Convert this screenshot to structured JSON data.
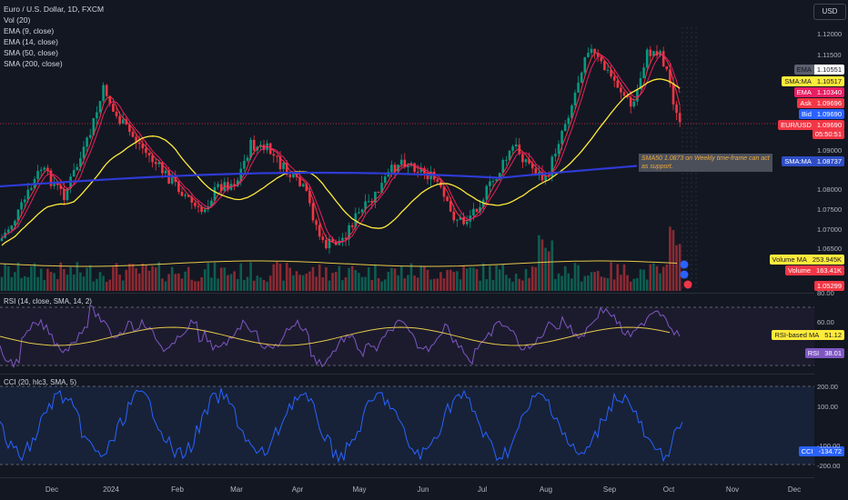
{
  "legend": {
    "title": "Euro / U.S. Dollar, 1D, FXCM",
    "lines": [
      "Vol (20)",
      "EMA (9, close)",
      "EMA (14, close)",
      "SMA (50, close)",
      "SMA (200, close)"
    ]
  },
  "currency_button": "USD",
  "price_axis": {
    "ticks": [
      "1.12000",
      "1.11500",
      "1.09000",
      "1.08000",
      "1.07500",
      "1.07000",
      "1.06500",
      "80.00"
    ]
  },
  "price_labels": [
    {
      "name": "EMA",
      "value": "1.10551",
      "name_bg": "#5c5f6e",
      "value_bg": "#ffffff",
      "color": "#131722"
    },
    {
      "name": "SMA:MA",
      "value": "1.10517",
      "name_bg": "#ffeb3b",
      "value_bg": "#ffeb3b",
      "color": "#131722"
    },
    {
      "name": "EMA",
      "value": "1.10340",
      "name_bg": "#e91e63",
      "value_bg": "#e91e63",
      "color": "#ffffff"
    },
    {
      "name": "Ask",
      "value": "1.09696",
      "name_bg": "#f23645",
      "value_bg": "#f23645",
      "color": "#ffffff"
    },
    {
      "name": "Bid",
      "value": "1.09690",
      "name_bg": "#2962ff",
      "value_bg": "#2962ff",
      "color": "#ffffff"
    },
    {
      "name": "EUR/USD",
      "value": "1.09690",
      "name_bg": "#f23645",
      "value_bg": "#f23645",
      "color": "#ffffff"
    },
    {
      "name": "",
      "value": "05:50:51",
      "name_bg": "#f23645",
      "value_bg": "#f23645",
      "color": "#ffffff"
    },
    {
      "name": "SMA:MA",
      "value": "1.08737",
      "name_bg": "#2e4ec7",
      "value_bg": "#2e4ec7",
      "color": "#ffffff"
    },
    {
      "name": "Volume MA",
      "value": "253.945K",
      "name_bg": "#ffeb3b",
      "value_bg": "#ffeb3b",
      "color": "#131722"
    },
    {
      "name": "Volume",
      "value": "163.41K",
      "name_bg": "#f23645",
      "value_bg": "#f23645",
      "color": "#ffffff"
    },
    {
      "name": "",
      "value": "1.05299",
      "name_bg": "#f23645",
      "value_bg": "#f23645",
      "color": "#ffffff"
    }
  ],
  "annotation": "SMA50 1.0873 on Weekly time-frame can act as support.",
  "rsi": {
    "label": "RSI (14, close, SMA, 14, 2)",
    "ticks": [
      "60.00"
    ],
    "labels": [
      {
        "name": "RSI-based MA",
        "value": "51.12",
        "name_bg": "#ffeb3b",
        "value_bg": "#ffeb3b",
        "color": "#131722"
      },
      {
        "name": "RSI",
        "value": "38.01",
        "name_bg": "#7e57c2",
        "value_bg": "#7e57c2",
        "color": "#ffffff"
      }
    ]
  },
  "cci": {
    "label": "CCI (20, hlc3, SMA, 5)",
    "ticks": [
      "200.00",
      "100.00",
      "-100.00",
      "-200.00"
    ],
    "labels": [
      {
        "name": "CCI",
        "value": "-134.72",
        "name_bg": "#2962ff",
        "value_bg": "#2962ff",
        "color": "#ffffff"
      }
    ]
  },
  "time_axis": [
    "Dec",
    "2024",
    "Feb",
    "Mar",
    "Apr",
    "May",
    "Jun",
    "Jul",
    "Aug",
    "Sep",
    "Oct",
    "Nov",
    "Dec"
  ],
  "colors": {
    "bull": "#089981",
    "bear": "#f23645",
    "ema9": "#f23645",
    "ema14": "#e91e63",
    "sma50": "#ffeb3b",
    "sma200": "#2e3bd6",
    "rsi": "#7e57c2",
    "cci": "#2962ff"
  }
}
